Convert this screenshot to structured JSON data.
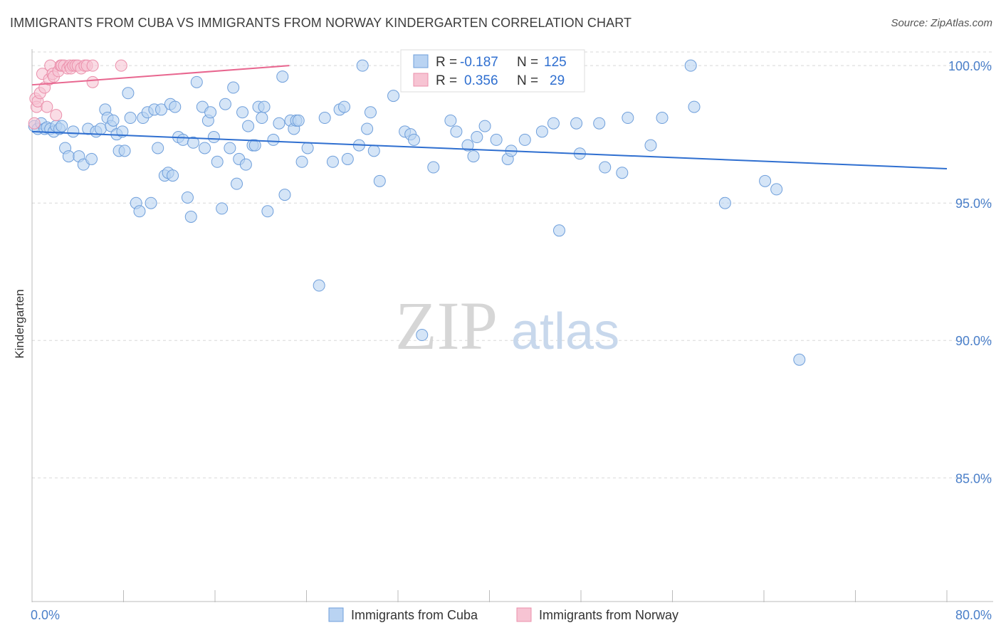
{
  "title": "IMMIGRANTS FROM CUBA VS IMMIGRANTS FROM NORWAY KINDERGARTEN CORRELATION CHART",
  "source": "Source: ZipAtlas.com",
  "watermark": {
    "zip": "ZIP",
    "atlas": "atlas"
  },
  "colors": {
    "blue_fill": "#b9d3f2",
    "blue_stroke": "#6f9fdb",
    "blue_line": "#2f6fd0",
    "pink_fill": "#f7c4d3",
    "pink_stroke": "#eb8fab",
    "pink_line": "#e8668f",
    "grid": "#d8d8d8",
    "axis_text": "#4a7fc9",
    "stat_value": "#2f6fd0"
  },
  "stats": {
    "r_label": "R =",
    "n_label": "N =",
    "cuba": {
      "r": "-0.187",
      "n": "125"
    },
    "norway": {
      "r": "0.356",
      "n": "29"
    }
  },
  "chart_data": {
    "type": "scatter",
    "title": "IMMIGRANTS FROM CUBA VS IMMIGRANTS FROM NORWAY KINDERGARTEN CORRELATION CHART",
    "xlabel": "",
    "ylabel": "Kindergarten",
    "xlim": [
      0,
      80
    ],
    "ylim": [
      80.5,
      100.6
    ],
    "x_tick_labels": {
      "min": "0.0%",
      "max": "80.0%"
    },
    "x_minor_ticks": [
      0,
      8,
      16,
      24,
      32,
      40,
      48,
      56,
      64,
      72,
      80
    ],
    "y_ticks": [
      {
        "value": 100,
        "label": "100.0%"
      },
      {
        "value": 95,
        "label": "95.0%"
      },
      {
        "value": 90,
        "label": "90.0%"
      },
      {
        "value": 85,
        "label": "85.0%"
      }
    ],
    "grid": true,
    "legend": {
      "position": "bottom-center",
      "entries": [
        "Immigrants from Cuba",
        "Immigrants from Norway"
      ]
    },
    "series": [
      {
        "name": "Immigrants from Cuba",
        "color": "blue",
        "trend": {
          "x": [
            0,
            80
          ],
          "y": [
            97.6,
            96.25
          ]
        },
        "points": [
          [
            0.2,
            97.8
          ],
          [
            0.5,
            97.7
          ],
          [
            0.8,
            97.9
          ],
          [
            1.1,
            97.7
          ],
          [
            1.3,
            97.75
          ],
          [
            1.6,
            97.7
          ],
          [
            1.9,
            97.6
          ],
          [
            2.1,
            97.8
          ],
          [
            2.4,
            97.7
          ],
          [
            2.9,
            97.0
          ],
          [
            3.2,
            96.7
          ],
          [
            3.6,
            97.6
          ],
          [
            4.1,
            96.7
          ],
          [
            4.5,
            96.4
          ],
          [
            4.9,
            97.7
          ],
          [
            5.2,
            96.6
          ],
          [
            5.6,
            97.6
          ],
          [
            6.0,
            97.7
          ],
          [
            6.4,
            98.4
          ],
          [
            6.6,
            98.1
          ],
          [
            6.9,
            97.8
          ],
          [
            7.1,
            98.0
          ],
          [
            7.4,
            97.5
          ],
          [
            7.6,
            96.9
          ],
          [
            8.1,
            96.9
          ],
          [
            8.4,
            99.0
          ],
          [
            8.6,
            98.1
          ],
          [
            9.1,
            95.0
          ],
          [
            9.4,
            94.7
          ],
          [
            9.7,
            98.1
          ],
          [
            10.1,
            98.3
          ],
          [
            10.4,
            95.0
          ],
          [
            10.7,
            98.4
          ],
          [
            11.0,
            97.0
          ],
          [
            11.3,
            98.4
          ],
          [
            11.6,
            96.0
          ],
          [
            11.9,
            96.1
          ],
          [
            12.1,
            98.6
          ],
          [
            12.3,
            96.0
          ],
          [
            12.5,
            98.5
          ],
          [
            12.8,
            97.4
          ],
          [
            13.2,
            97.3
          ],
          [
            13.6,
            95.2
          ],
          [
            13.9,
            94.5
          ],
          [
            14.1,
            97.2
          ],
          [
            14.4,
            99.4
          ],
          [
            14.9,
            98.5
          ],
          [
            15.1,
            97.0
          ],
          [
            15.4,
            98.0
          ],
          [
            15.6,
            98.3
          ],
          [
            15.9,
            97.4
          ],
          [
            16.2,
            96.5
          ],
          [
            16.6,
            94.8
          ],
          [
            16.9,
            98.6
          ],
          [
            17.3,
            97.0
          ],
          [
            17.6,
            99.2
          ],
          [
            17.9,
            95.7
          ],
          [
            18.1,
            96.6
          ],
          [
            18.4,
            98.3
          ],
          [
            18.7,
            96.4
          ],
          [
            18.9,
            97.8
          ],
          [
            19.3,
            97.1
          ],
          [
            19.5,
            97.1
          ],
          [
            19.8,
            98.5
          ],
          [
            20.1,
            98.1
          ],
          [
            20.3,
            98.5
          ],
          [
            20.6,
            94.7
          ],
          [
            21.1,
            97.3
          ],
          [
            21.6,
            97.9
          ],
          [
            21.9,
            99.6
          ],
          [
            22.1,
            95.3
          ],
          [
            22.6,
            98.0
          ],
          [
            22.9,
            97.7
          ],
          [
            23.1,
            98.0
          ],
          [
            23.3,
            98.0
          ],
          [
            23.6,
            96.5
          ],
          [
            24.1,
            97.0
          ],
          [
            25.1,
            92.0
          ],
          [
            25.6,
            98.1
          ],
          [
            26.3,
            96.5
          ],
          [
            26.9,
            98.4
          ],
          [
            27.3,
            98.5
          ],
          [
            27.6,
            96.6
          ],
          [
            28.6,
            97.1
          ],
          [
            28.9,
            100.0
          ],
          [
            29.3,
            97.7
          ],
          [
            29.6,
            98.3
          ],
          [
            29.9,
            96.9
          ],
          [
            30.4,
            95.8
          ],
          [
            31.6,
            98.9
          ],
          [
            32.6,
            97.6
          ],
          [
            33.1,
            97.5
          ],
          [
            33.4,
            97.3
          ],
          [
            34.1,
            90.2
          ],
          [
            34.6,
            100.0
          ],
          [
            35.1,
            96.3
          ],
          [
            36.6,
            98.0
          ],
          [
            37.1,
            97.6
          ],
          [
            38.1,
            97.1
          ],
          [
            38.6,
            96.7
          ],
          [
            38.9,
            97.4
          ],
          [
            39.6,
            97.8
          ],
          [
            40.6,
            97.3
          ],
          [
            41.6,
            96.6
          ],
          [
            41.9,
            96.9
          ],
          [
            43.1,
            97.3
          ],
          [
            44.6,
            97.6
          ],
          [
            45.6,
            97.9
          ],
          [
            46.1,
            94.0
          ],
          [
            47.6,
            97.9
          ],
          [
            47.9,
            96.8
          ],
          [
            49.6,
            97.9
          ],
          [
            50.1,
            96.3
          ],
          [
            51.6,
            96.1
          ],
          [
            52.1,
            98.1
          ],
          [
            54.1,
            97.1
          ],
          [
            55.1,
            98.1
          ],
          [
            57.6,
            100.0
          ],
          [
            57.9,
            98.5
          ],
          [
            60.6,
            95.0
          ],
          [
            64.1,
            95.8
          ],
          [
            65.1,
            95.5
          ],
          [
            67.1,
            89.3
          ],
          [
            2.6,
            97.8
          ],
          [
            7.9,
            97.6
          ]
        ]
      },
      {
        "name": "Immigrants from Norway",
        "color": "pink",
        "trend": {
          "x": [
            0,
            22.5
          ],
          "y": [
            99.3,
            100.0
          ]
        },
        "points": [
          [
            0.2,
            97.9
          ],
          [
            0.3,
            98.8
          ],
          [
            0.4,
            98.5
          ],
          [
            0.5,
            98.7
          ],
          [
            0.7,
            99.0
          ],
          [
            0.9,
            99.7
          ],
          [
            1.1,
            99.2
          ],
          [
            1.3,
            98.5
          ],
          [
            1.5,
            99.5
          ],
          [
            1.6,
            100.0
          ],
          [
            1.8,
            99.7
          ],
          [
            1.9,
            99.6
          ],
          [
            2.1,
            98.2
          ],
          [
            2.3,
            99.8
          ],
          [
            2.5,
            100.0
          ],
          [
            2.6,
            100.0
          ],
          [
            2.8,
            100.0
          ],
          [
            3.1,
            99.9
          ],
          [
            3.3,
            100.0
          ],
          [
            3.4,
            99.9
          ],
          [
            3.6,
            100.0
          ],
          [
            3.8,
            100.0
          ],
          [
            4.0,
            100.0
          ],
          [
            4.3,
            99.9
          ],
          [
            4.6,
            100.0
          ],
          [
            4.8,
            100.0
          ],
          [
            5.3,
            100.0
          ],
          [
            5.3,
            99.4
          ],
          [
            7.8,
            100.0
          ]
        ]
      }
    ]
  }
}
